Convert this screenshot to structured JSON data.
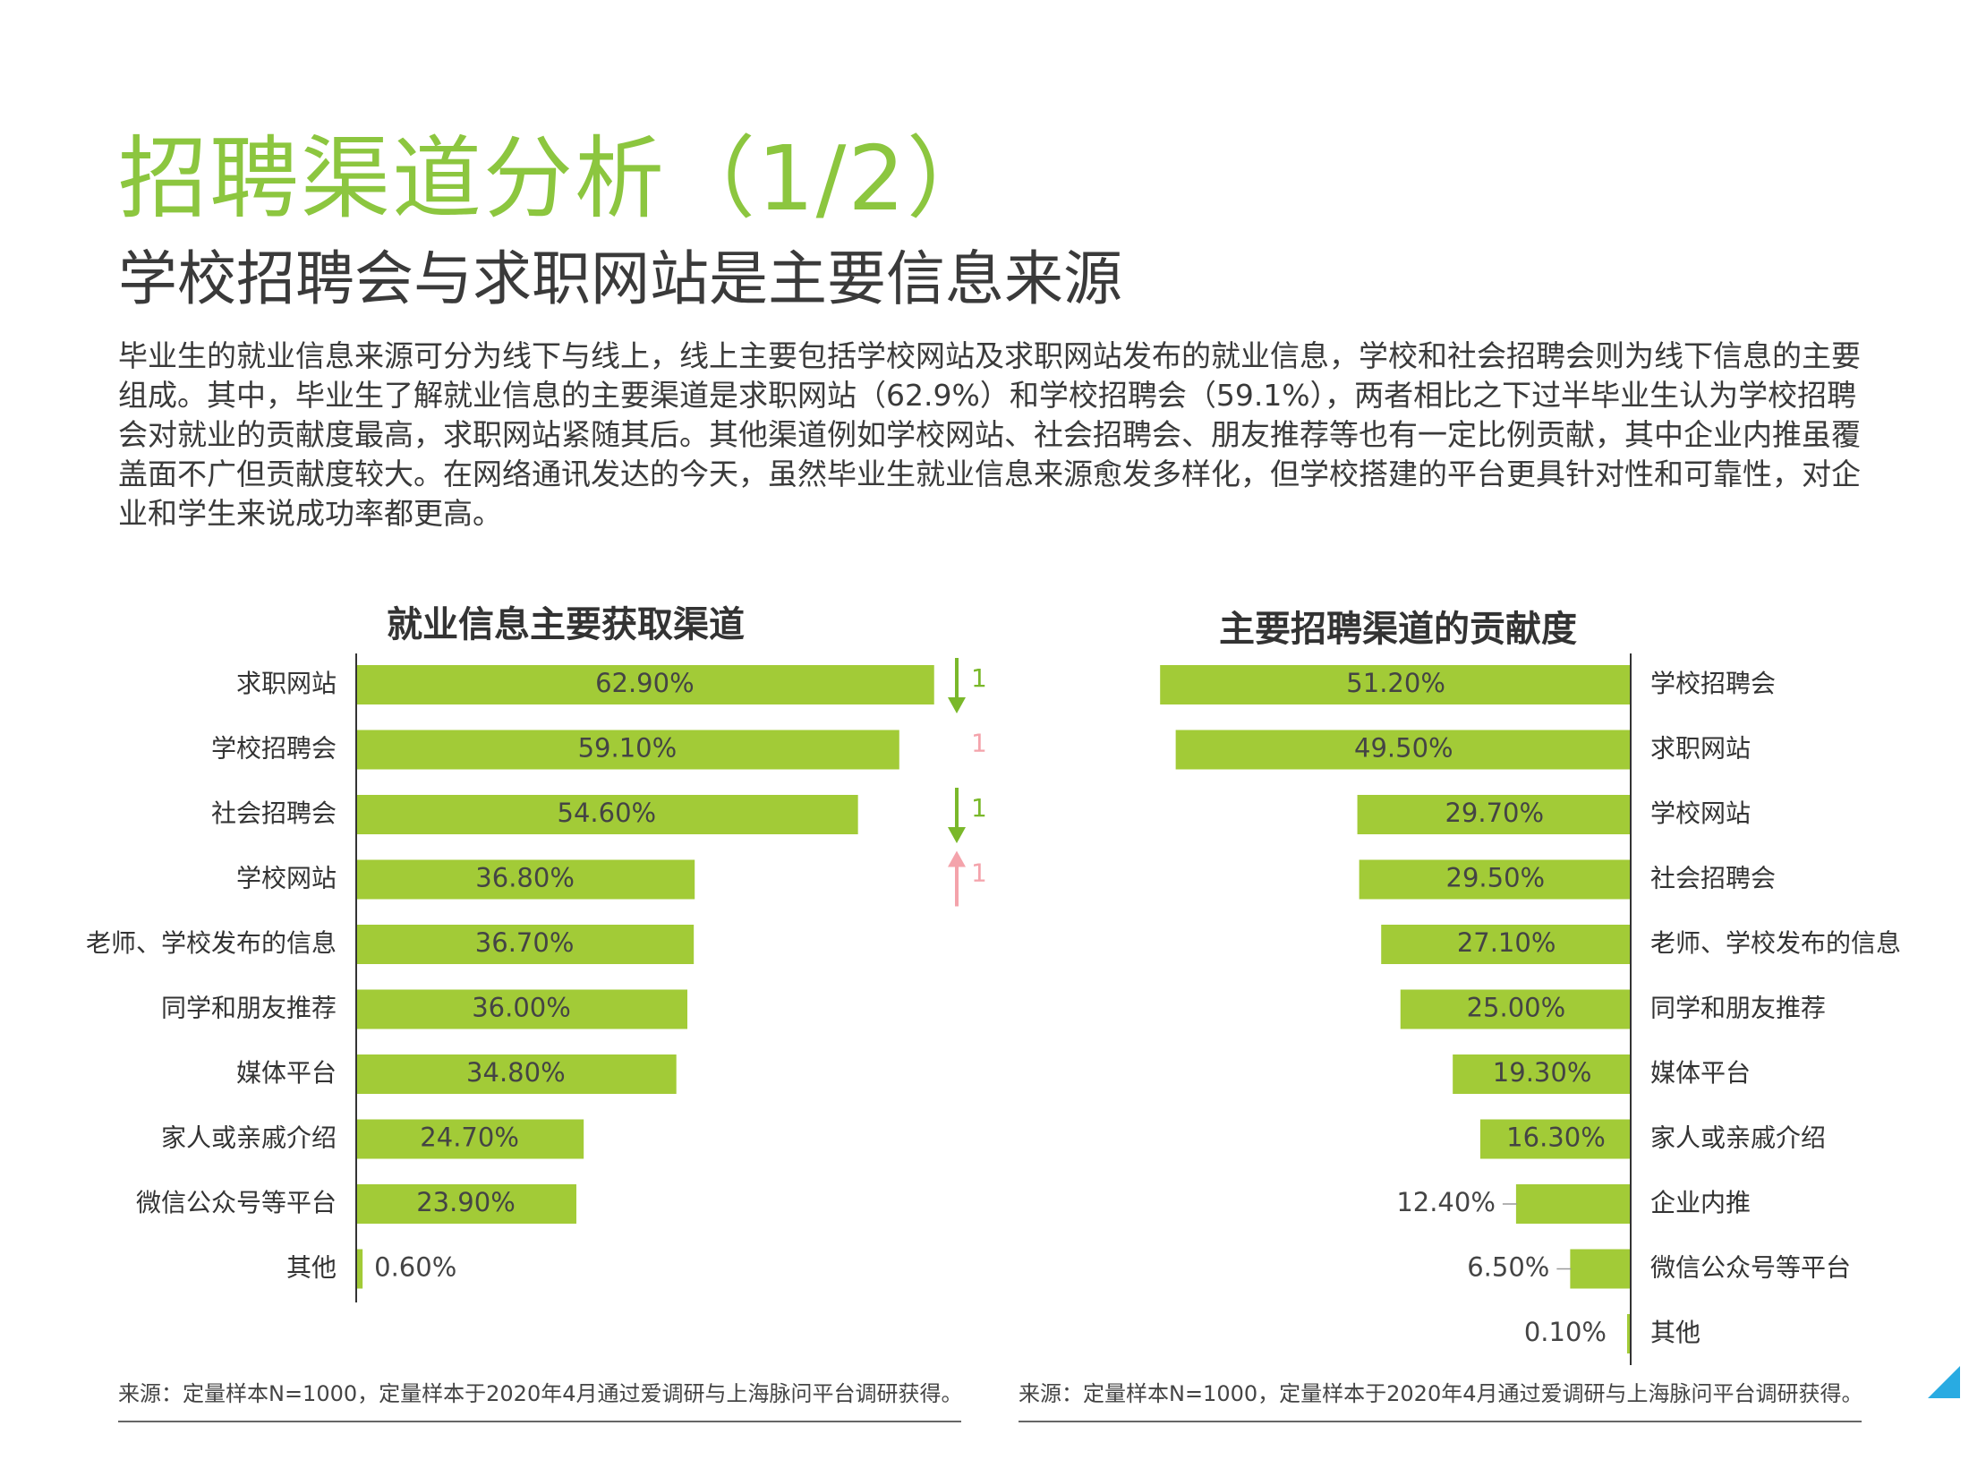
{
  "page": {
    "title": "招聘渠道分析（1/2）",
    "subtitle": "学校招聘会与求职网站是主要信息来源",
    "paragraph": "毕业生的就业信息来源可分为线下与线上，线上主要包括学校网站及求职网站发布的就业信息，学校和社会招聘会则为线下信息的主要组成。其中，毕业生了解就业信息的主要渠道是求职网站（62.9%）和学校招聘会（59.1%），两者相比之下过半毕业生认为学校招聘会对就业的贡献度最高，求职网站紧随其后。其他渠道例如学校网站、社会招聘会、朋友推荐等也有一定比例贡献，其中企业内推虽覆盖面不广但贡献度较大。在网络通讯发达的今天，虽然毕业生就业信息来源愈发多样化，但学校搭建的平台更具针对性和可靠性，对企业和学生来说成功率都更高。",
    "footnote_left": "来源：定量样本N=1000，定量样本于2020年4月通过爱调研与上海脉问平台调研获得。",
    "footnote_right": "来源：定量样本N=1000，定量样本于2020年4月通过爱调研与上海脉问平台调研获得。"
  },
  "colors": {
    "accent": "#8cc63f",
    "bar": "#a2cb37",
    "rank_down": "#7ab82a",
    "rank_up": "#f4a3ab",
    "corner": "#29abe2"
  },
  "chart_data": [
    {
      "type": "bar",
      "orientation": "horizontal",
      "title": "就业信息主要获取渠道",
      "categories": [
        "求职网站",
        "学校招聘会",
        "社会招聘会",
        "学校网站",
        "老师、学校发布的信息",
        "同学和朋友推荐",
        "媒体平台",
        "家人或亲戚介绍",
        "微信公众号等平台",
        "其他"
      ],
      "values": [
        62.9,
        59.1,
        54.6,
        36.8,
        36.7,
        36.0,
        34.8,
        24.7,
        23.9,
        0.6
      ],
      "value_labels": [
        "62.90%",
        "59.10%",
        "54.60%",
        "36.80%",
        "36.70%",
        "36.00%",
        "34.80%",
        "24.70%",
        "23.90%",
        "0.60%"
      ],
      "xlim": [
        0,
        70
      ]
    },
    {
      "type": "bar",
      "orientation": "horizontal",
      "direction": "right-to-left",
      "title": "主要招聘渠道的贡献度",
      "categories": [
        "学校招聘会",
        "求职网站",
        "学校网站",
        "社会招聘会",
        "老师、学校发布的信息",
        "同学和朋友推荐",
        "媒体平台",
        "家人或亲戚介绍",
        "企业内推",
        "微信公众号等平台",
        "其他"
      ],
      "values": [
        51.2,
        49.5,
        29.7,
        29.5,
        27.1,
        25.0,
        19.3,
        16.3,
        12.4,
        6.5,
        0.1
      ],
      "value_labels": [
        "51.20%",
        "49.50%",
        "29.70%",
        "29.50%",
        "27.10%",
        "25.00%",
        "19.30%",
        "16.30%",
        "12.40%",
        "6.50%",
        "0.10%"
      ],
      "xlim": [
        0,
        70
      ]
    }
  ],
  "rank_changes": [
    {
      "row": 0,
      "direction": "down",
      "amount": "1"
    },
    {
      "row": 1,
      "direction": "up",
      "amount": "1"
    },
    {
      "row": 2,
      "direction": "down",
      "amount": "1"
    },
    {
      "row": 3,
      "direction": "up",
      "amount": "1"
    }
  ]
}
